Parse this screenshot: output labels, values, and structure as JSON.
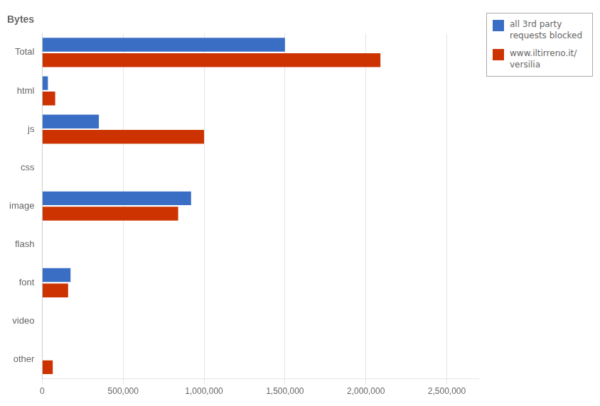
{
  "chart_data": {
    "type": "bar",
    "orientation": "horizontal",
    "title": "Bytes",
    "categories": [
      "Total",
      "html",
      "js",
      "css",
      "image",
      "flash",
      "font",
      "video",
      "other"
    ],
    "series": [
      {
        "name": "all 3rd party\nrequests blocked",
        "color": "#3a6ec4",
        "values": [
          1500000,
          35000,
          350000,
          0,
          920000,
          0,
          175000,
          0,
          0
        ]
      },
      {
        "name": "www.iltirreno.it/\nversilia",
        "color": "#cc3300",
        "values": [
          2090000,
          80000,
          1000000,
          0,
          840000,
          0,
          160000,
          0,
          65000
        ]
      }
    ],
    "xlim": [
      0,
      2700000
    ],
    "xticks": [
      0,
      {
        "value": 500000,
        "label": "500,000"
      },
      {
        "value": 1000000,
        "label": "1,000,000"
      },
      {
        "value": 1500000,
        "label": "1,500,000"
      },
      {
        "value": 2000000,
        "label": "2,000,000"
      },
      {
        "value": 2500000,
        "label": "2,500,000"
      }
    ],
    "grid": true,
    "legend": "upper right"
  }
}
